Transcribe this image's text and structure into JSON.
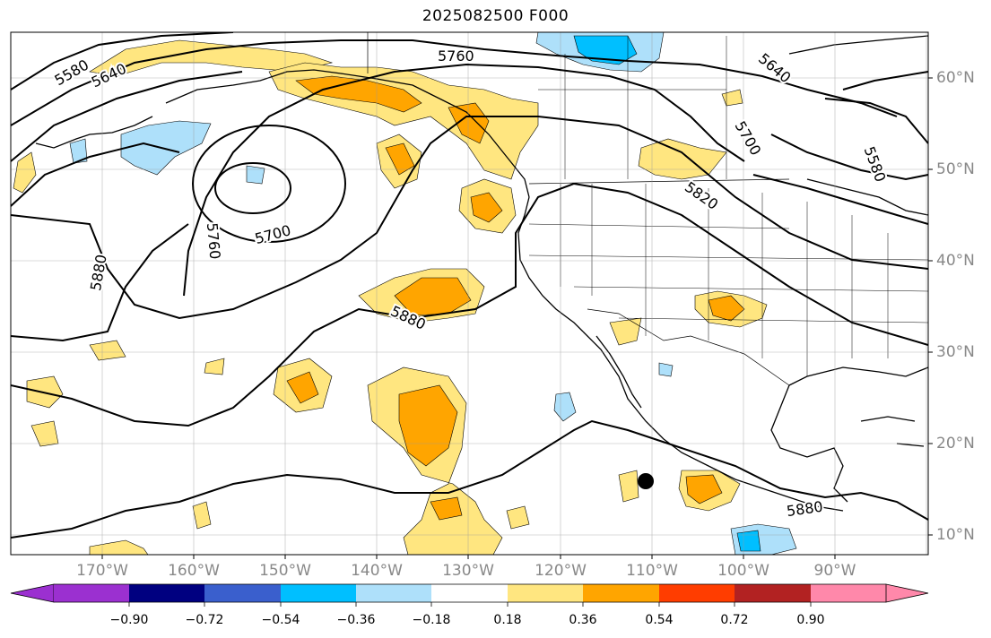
{
  "title": "2025082500 F000",
  "lat_labels": [
    "60°N",
    "50°N",
    "40°N",
    "30°N",
    "20°N",
    "10°N"
  ],
  "lon_labels": [
    "170°W",
    "160°W",
    "150°W",
    "140°W",
    "130°W",
    "120°W",
    "110°W",
    "100°W",
    "90°W"
  ],
  "contour_labels": [
    "5580",
    "5640",
    "5760",
    "5640",
    "5700",
    "5580",
    "5700",
    "5760",
    "5820",
    "5880",
    "5880",
    "5880"
  ],
  "colorbar": {
    "ticks": [
      "−0.90",
      "−0.72",
      "−0.54",
      "−0.36",
      "−0.18",
      "0.18",
      "0.36",
      "0.54",
      "0.72",
      "0.90"
    ],
    "colors": [
      "#9b30d0",
      "#000080",
      "#3a5fcd",
      "#00bfff",
      "#aee0fa",
      "#ffffff",
      "#ffe680",
      "#ffa500",
      "#ff3d00",
      "#b22222",
      "#ff88aa"
    ]
  },
  "marker": "storm-center-dot"
}
